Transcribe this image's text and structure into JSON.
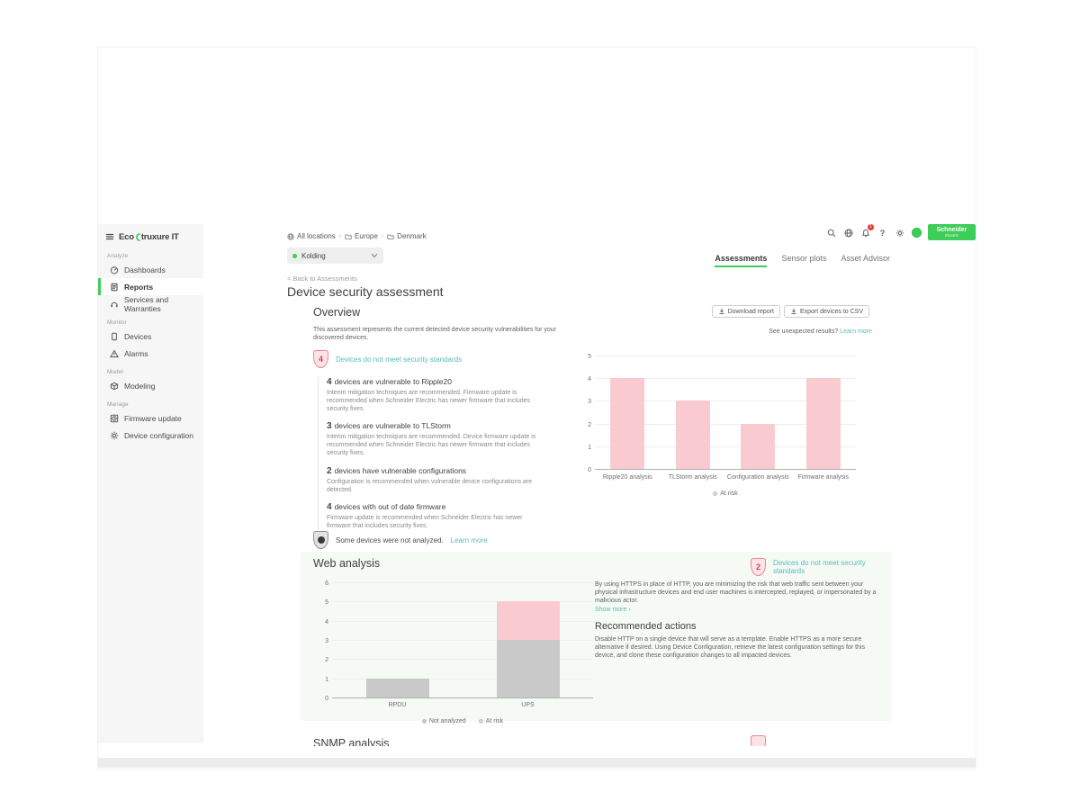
{
  "sidebar": {
    "logo": {
      "prefix": "Eco",
      "suffix": "truxure IT"
    },
    "sections": [
      {
        "label": "Analyze",
        "items": [
          {
            "label": "Dashboards"
          },
          {
            "label": "Reports"
          },
          {
            "label": "Services and Warranties"
          }
        ]
      },
      {
        "label": "Monitor",
        "items": [
          {
            "label": "Devices"
          },
          {
            "label": "Alarms"
          }
        ]
      },
      {
        "label": "Model",
        "items": [
          {
            "label": "Modeling"
          }
        ]
      },
      {
        "label": "Manage",
        "items": [
          {
            "label": "Firmware update"
          },
          {
            "label": "Device configuration"
          }
        ]
      }
    ]
  },
  "header": {
    "breadcrumb": [
      "All locations",
      "Europe",
      "Denmark"
    ],
    "location": "Kolding",
    "notification_count": "1",
    "brand": {
      "line1": "Schneider",
      "line2": "Electric"
    }
  },
  "tabs": [
    {
      "label": "Assessments"
    },
    {
      "label": "Sensor plots"
    },
    {
      "label": "Asset Advisor"
    }
  ],
  "page": {
    "back_link": "< Back to Assessments",
    "title": "Device security assessment"
  },
  "overview": {
    "heading": "Overview",
    "download_button": "Download report",
    "export_button": "Export devices to CSV",
    "description": "This assessment represents the current detected device security vulnerabilities for your discovered devices.",
    "unexpected": {
      "text": "See unexpected results?",
      "link": "Learn more"
    },
    "badge": {
      "count": "4",
      "label": "Devices do not meet security standards"
    },
    "items": [
      {
        "count": "4",
        "title": "devices are vulnerable to Ripple20",
        "description": "Interim mitigation techniques are recommended. Firmware update is recommended when Schneider Electric has newer firmware that includes security fixes."
      },
      {
        "count": "3",
        "title": "devices are vulnerable to TLStorm",
        "description": "Interim mitigation techniques are recommended. Device firmware update is recommended when Schneider Electric has newer firmware that includes security fixes."
      },
      {
        "count": "2",
        "title": "devices have vulnerable configurations",
        "description": "Configuration is recommended when vulnerable device configurations are detected."
      },
      {
        "count": "4",
        "title": "devices with out of date firmware",
        "description": "Firmware update is recommended when Schneider Electric has newer firmware that includes security fixes."
      }
    ],
    "not_analyzed": {
      "text": "Some devices were not analyzed.",
      "link": "Learn more"
    }
  },
  "web_analysis": {
    "heading": "Web analysis",
    "badge": {
      "count": "2",
      "label": "Devices do not meet security standards"
    },
    "description": "By using HTTPS in place of HTTP, you are minimizing the risk that web traffic sent between your physical infrastructure devices and end user machines is intercepted, replayed, or impersonated by a malicious actor.",
    "show_more": "Show more ›",
    "recommended_heading": "Recommended actions",
    "recommended_text": "Disable HTTP on a single device that will serve as a template. Enable HTTPS as a more secure alternative if desired. Using Device Configuration, retrieve the latest configuration settings for this device, and clone these configuration changes to all impacted devices."
  },
  "snmp": {
    "heading": "SNMP analysis"
  },
  "icons": {
    "menu": "hamburger",
    "search": "magnifier",
    "globe": "globe",
    "notifications": "bell",
    "help": "question-mark",
    "settings": "gear",
    "avatar": "green-circle",
    "download": "arrow-down-to-line",
    "chevron_down": "caret",
    "folder": "folder",
    "shield": "shield"
  },
  "colors": {
    "accent_green": "#3dcd58",
    "link_teal": "#57bdb4",
    "risk_pink": "#f9cbd1",
    "neutral_gray": "#c9c9c9",
    "badge_red_border": "#ea8794",
    "sidebar_bg": "#f6f6f6",
    "web_section_bg": "#f5faf5"
  },
  "chart_data": [
    {
      "type": "bar",
      "categories": [
        "Ripple20 analysis",
        "TLStorm analysis",
        "Configuration analysis",
        "Firmware analysis"
      ],
      "series": [
        {
          "name": "At risk",
          "color": "#f9cbd1",
          "values": [
            4,
            3,
            2,
            4
          ]
        }
      ],
      "title": "",
      "xlabel": "",
      "ylabel": "",
      "ylim": [
        0,
        5
      ],
      "stacked": false,
      "grid": true,
      "legend_position": "bottom"
    },
    {
      "type": "bar",
      "categories": [
        "RPDU",
        "UPS"
      ],
      "series": [
        {
          "name": "Not analyzed",
          "color": "#c9c9c9",
          "values": [
            1,
            3
          ]
        },
        {
          "name": "At risk",
          "color": "#f9cbd1",
          "values": [
            0,
            2
          ]
        }
      ],
      "title": "",
      "xlabel": "",
      "ylabel": "",
      "ylim": [
        0,
        6
      ],
      "stacked": true,
      "grid": true,
      "legend_position": "bottom"
    }
  ]
}
